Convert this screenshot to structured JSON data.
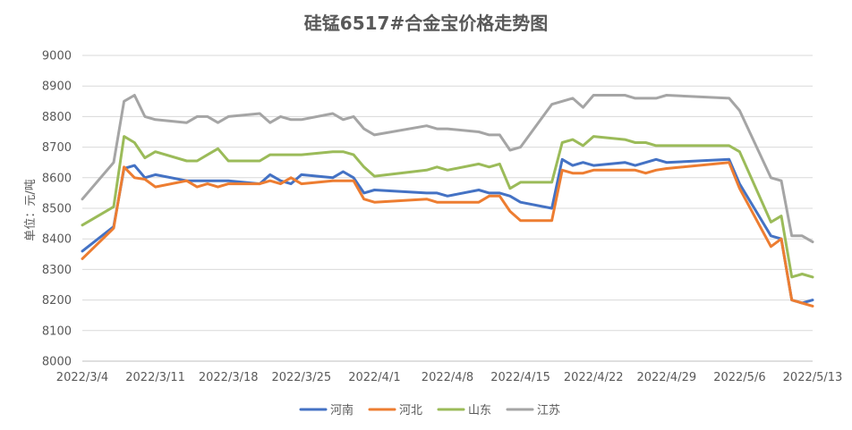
{
  "chart_data": {
    "type": "line",
    "title": "硅锰6517#合金宝价格走势图",
    "ylabel": "单位：元/吨",
    "xlabel": "",
    "ylim": [
      8000,
      9000
    ],
    "yticks": [
      8000,
      8100,
      8200,
      8300,
      8400,
      8500,
      8600,
      8700,
      8800,
      8900,
      9000
    ],
    "xlim": [
      "2022-03-04",
      "2022-05-13"
    ],
    "xtick_labels": [
      "2022/3/4",
      "2022/3/11",
      "2022/3/18",
      "2022/3/25",
      "2022/4/1",
      "2022/4/8",
      "2022/4/15",
      "2022/4/22",
      "2022/4/29",
      "2022/5/6",
      "2022/5/13"
    ],
    "grid": true,
    "legend_position": "bottom",
    "x": [
      "2022-03-04",
      "2022-03-07",
      "2022-03-08",
      "2022-03-09",
      "2022-03-10",
      "2022-03-11",
      "2022-03-14",
      "2022-03-15",
      "2022-03-16",
      "2022-03-17",
      "2022-03-18",
      "2022-03-21",
      "2022-03-22",
      "2022-03-23",
      "2022-03-24",
      "2022-03-25",
      "2022-03-28",
      "2022-03-29",
      "2022-03-30",
      "2022-03-31",
      "2022-04-01",
      "2022-04-06",
      "2022-04-07",
      "2022-04-08",
      "2022-04-11",
      "2022-04-12",
      "2022-04-13",
      "2022-04-14",
      "2022-04-15",
      "2022-04-18",
      "2022-04-19",
      "2022-04-20",
      "2022-04-21",
      "2022-04-22",
      "2022-04-25",
      "2022-04-26",
      "2022-04-27",
      "2022-04-28",
      "2022-04-29",
      "2022-05-05",
      "2022-05-06",
      "2022-05-09",
      "2022-05-10",
      "2022-05-11",
      "2022-05-12",
      "2022-05-13"
    ],
    "series": [
      {
        "name": "河南",
        "color": "#4472c4",
        "values": [
          8360,
          8440,
          8630,
          8640,
          8600,
          8610,
          8590,
          8590,
          8590,
          8590,
          8590,
          8580,
          8610,
          8590,
          8580,
          8610,
          8600,
          8620,
          8600,
          8550,
          8560,
          8550,
          8550,
          8540,
          8560,
          8550,
          8550,
          8540,
          8520,
          8500,
          8660,
          8640,
          8650,
          8640,
          8650,
          8640,
          8650,
          8660,
          8650,
          8660,
          8580,
          8410,
          8400,
          8200,
          8190,
          8200
        ]
      },
      {
        "name": "河北",
        "color": "#ed7d31",
        "values": [
          8335,
          8435,
          8635,
          8600,
          8595,
          8570,
          8590,
          8570,
          8580,
          8570,
          8580,
          8580,
          8590,
          8580,
          8600,
          8580,
          8590,
          8590,
          8590,
          8530,
          8520,
          8530,
          8520,
          8520,
          8520,
          8540,
          8540,
          8490,
          8460,
          8460,
          8625,
          8615,
          8615,
          8625,
          8625,
          8625,
          8615,
          8625,
          8630,
          8650,
          8565,
          8375,
          8400,
          8200,
          8190,
          8180
        ]
      },
      {
        "name": "山东",
        "color": "#9bbb59",
        "values": [
          8445,
          8505,
          8735,
          8715,
          8665,
          8685,
          8655,
          8655,
          8675,
          8695,
          8655,
          8655,
          8675,
          8675,
          8675,
          8675,
          8685,
          8685,
          8675,
          8635,
          8605,
          8625,
          8635,
          8625,
          8645,
          8635,
          8645,
          8565,
          8585,
          8585,
          8715,
          8725,
          8705,
          8735,
          8725,
          8715,
          8715,
          8705,
          8705,
          8705,
          8685,
          8455,
          8475,
          8275,
          8285,
          8275
        ]
      },
      {
        "name": "江苏",
        "color": "#a5a5a5",
        "values": [
          8530,
          8650,
          8850,
          8870,
          8800,
          8790,
          8780,
          8800,
          8800,
          8780,
          8800,
          8810,
          8780,
          8800,
          8790,
          8790,
          8810,
          8790,
          8800,
          8760,
          8740,
          8770,
          8760,
          8760,
          8750,
          8740,
          8740,
          8690,
          8700,
          8840,
          8850,
          8860,
          8830,
          8870,
          8870,
          8860,
          8860,
          8860,
          8870,
          8860,
          8820,
          8600,
          8590,
          8410,
          8410,
          8390
        ]
      }
    ]
  }
}
